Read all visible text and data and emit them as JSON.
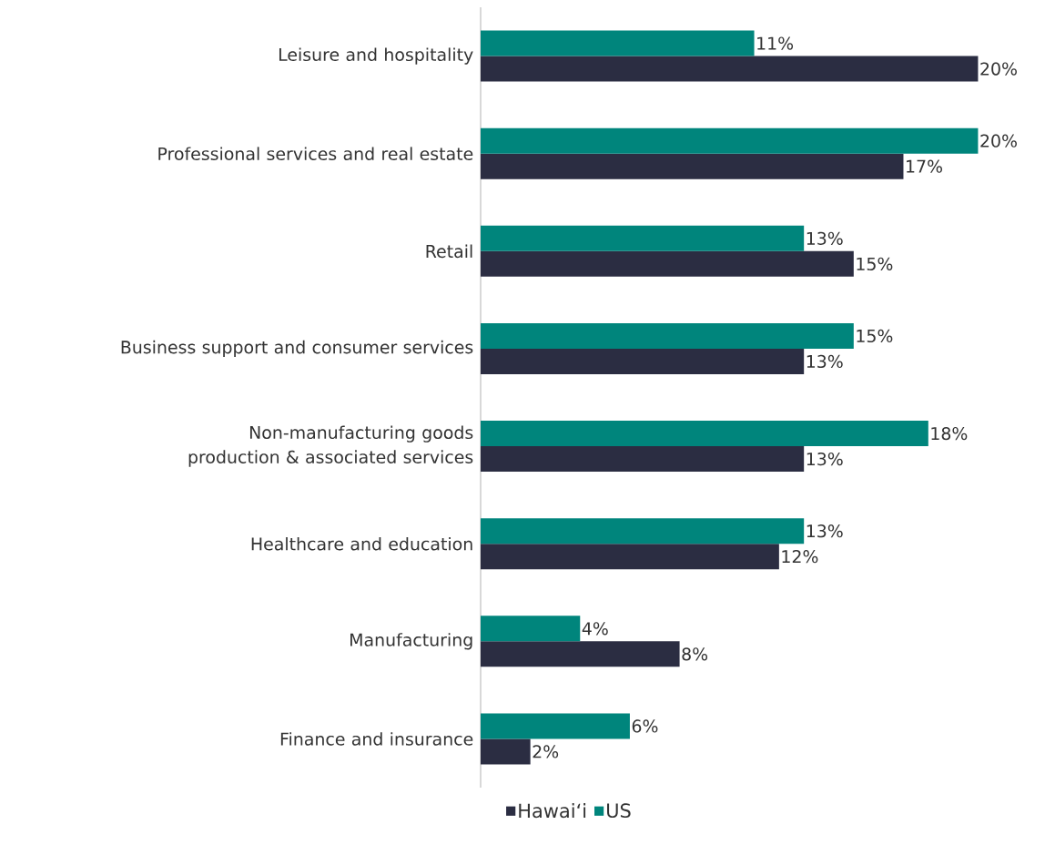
{
  "chart_data": {
    "type": "bar",
    "orientation": "horizontal",
    "legend": "bottom",
    "categories": [
      "Leisure and hospitality",
      "Professional services and real estate",
      "Retail",
      "Business support and consumer services",
      "Non-manufacturing goods production & associated services",
      "Healthcare and education",
      "Manufacturing",
      "Finance and insurance"
    ],
    "series": [
      {
        "name": "Hawaiʻi",
        "color": "#2b2d42",
        "values": [
          20,
          17,
          15,
          13,
          13,
          12,
          8,
          2
        ],
        "value_labels": [
          "20%",
          "17%",
          "15%",
          "13%",
          "13%",
          "12%",
          "8%",
          "2%"
        ]
      },
      {
        "name": "US",
        "color": "#00857c",
        "values": [
          11,
          20,
          13,
          15,
          18,
          13,
          4,
          6
        ],
        "value_labels": [
          "11%",
          "20%",
          "13%",
          "15%",
          "18%",
          "13%",
          "4%",
          "6%"
        ]
      }
    ]
  }
}
